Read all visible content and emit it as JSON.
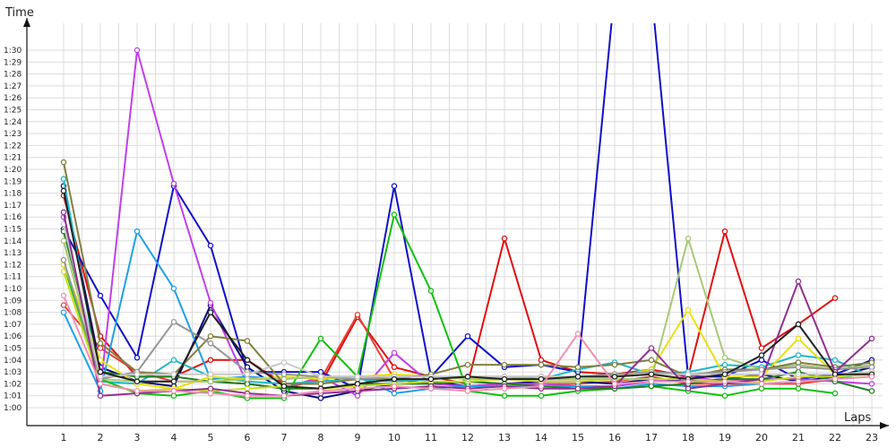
{
  "chart_data": {
    "type": "line",
    "ylabel": "Time",
    "xlabel": "Laps",
    "x": [
      1,
      2,
      3,
      4,
      5,
      6,
      7,
      8,
      9,
      10,
      11,
      12,
      13,
      14,
      15,
      16,
      17,
      18,
      19,
      20,
      21,
      22,
      23
    ],
    "y_tick_labels": [
      "1:00",
      "1:01",
      "1:02",
      "1:03",
      "1:04",
      "1:05",
      "1:06",
      "1:07",
      "1:08",
      "1:09",
      "1:10",
      "1:11",
      "1:12",
      "1:13",
      "1:14",
      "1:15",
      "1:16",
      "1:17",
      "1:18",
      "1:19",
      "1:20",
      "1:21",
      "1:22",
      "1:23",
      "1:24",
      "1:25",
      "1:26",
      "1:27",
      "1:28",
      "1:29",
      "1:30"
    ],
    "ylim_seconds": [
      60,
      90
    ],
    "grid": true,
    "series": [
      {
        "color": "#e01010",
        "values": [
          77.8,
          66.0,
          62.6,
          62.6,
          64.0,
          64.0,
          62.0,
          62.0,
          67.6,
          63.4,
          62.6,
          62.0,
          74.2,
          64.0,
          63.0,
          62.8,
          63.2,
          62.6,
          74.8,
          65.0,
          67.0,
          69.2,
          null
        ]
      },
      {
        "color": "#e8403a",
        "values": [
          68.6,
          65.0,
          63.0,
          62.2,
          62.2,
          62.0,
          61.6,
          62.4,
          67.8,
          62.4,
          62.0,
          62.2,
          62.0,
          62.0,
          62.0,
          62.2,
          62.6,
          62.0,
          62.0,
          62.0,
          62.0,
          62.4,
          null
        ]
      },
      {
        "color": "#1010c8",
        "values": [
          75.0,
          69.4,
          64.2,
          78.6,
          73.6,
          63.0,
          63.0,
          63.0,
          61.6,
          78.6,
          62.6,
          66.0,
          63.4,
          63.6,
          63.0,
          95.0,
          95.0,
          62.6,
          62.6,
          64.0,
          62.4,
          62.8,
          64.0
        ]
      },
      {
        "color": "#0a0a80",
        "values": [
          78.6,
          63.4,
          62.2,
          61.8,
          68.6,
          63.4,
          61.4,
          60.8,
          61.4,
          62.0,
          62.2,
          61.8,
          62.0,
          62.2,
          62.2,
          62.0,
          62.4,
          62.2,
          62.4,
          62.8,
          62.2,
          62.6,
          63.4
        ]
      },
      {
        "color": "#c040e8",
        "values": [
          76.0,
          61.4,
          90.0,
          78.8,
          68.8,
          62.0,
          61.6,
          62.6,
          61.0,
          64.6,
          62.0,
          61.8,
          62.0,
          62.0,
          61.8,
          61.8,
          62.2,
          62.6,
          62.2,
          62.4,
          62.4,
          62.2,
          62.0
        ]
      },
      {
        "color": "#1ea0e8",
        "values": [
          68.0,
          61.4,
          74.8,
          70.0,
          62.4,
          62.6,
          62.4,
          62.6,
          62.6,
          61.2,
          61.6,
          61.8,
          61.8,
          61.8,
          61.8,
          61.6,
          62.0,
          61.8,
          61.8,
          62.0,
          62.2,
          62.4,
          63.0
        ]
      },
      {
        "color": "#20b8c8",
        "values": [
          79.2,
          62.2,
          62.0,
          64.0,
          62.6,
          62.2,
          62.0,
          62.2,
          62.4,
          62.2,
          62.4,
          62.6,
          62.6,
          62.4,
          63.2,
          63.8,
          62.8,
          63.0,
          63.6,
          63.4,
          64.4,
          64.0,
          62.6
        ]
      },
      {
        "color": "#10c010",
        "values": [
          72.0,
          62.4,
          61.2,
          61.0,
          61.4,
          60.8,
          60.8,
          65.8,
          62.6,
          76.2,
          69.8,
          61.4,
          61.0,
          61.0,
          61.4,
          61.6,
          61.8,
          61.4,
          61.0,
          61.6,
          61.6,
          61.2,
          null
        ]
      },
      {
        "color": "#208020",
        "values": [
          74.8,
          63.0,
          62.6,
          62.6,
          62.2,
          62.0,
          61.6,
          61.6,
          62.0,
          62.0,
          62.0,
          62.2,
          62.0,
          61.8,
          61.6,
          61.6,
          61.8,
          62.0,
          62.4,
          62.4,
          63.0,
          62.2,
          61.4
        ]
      },
      {
        "color": "#c8e020",
        "values": [
          71.4,
          62.0,
          61.4,
          61.6,
          61.4,
          61.6,
          61.8,
          61.6,
          61.8,
          62.0,
          62.2,
          62.2,
          62.4,
          62.2,
          62.2,
          62.4,
          62.4,
          62.4,
          62.2,
          62.2,
          62.6,
          62.6,
          62.8
        ]
      },
      {
        "color": "#e8e010",
        "values": [
          72.0,
          64.0,
          62.0,
          61.6,
          62.6,
          62.4,
          62.6,
          62.4,
          62.6,
          62.8,
          62.6,
          62.4,
          62.6,
          62.6,
          62.6,
          62.6,
          63.2,
          68.2,
          62.6,
          62.6,
          65.8,
          62.8,
          63.0
        ]
      },
      {
        "color": "#a8c878",
        "values": [
          74.0,
          62.4,
          62.2,
          62.2,
          62.2,
          62.4,
          62.4,
          62.6,
          62.6,
          62.6,
          62.6,
          62.4,
          62.4,
          62.4,
          62.4,
          62.4,
          62.4,
          74.2,
          64.2,
          63.2,
          63.6,
          63.2,
          63.6
        ]
      },
      {
        "color": "#808040",
        "values": [
          80.6,
          65.4,
          63.0,
          62.8,
          66.0,
          65.6,
          62.0,
          62.0,
          62.4,
          62.4,
          62.8,
          63.6,
          63.6,
          63.6,
          63.4,
          63.6,
          64.0,
          62.6,
          63.2,
          63.2,
          63.8,
          63.4,
          63.8
        ]
      },
      {
        "color": "#969696",
        "values": [
          72.4,
          62.4,
          63.0,
          67.2,
          65.4,
          63.0,
          62.8,
          62.6,
          62.4,
          62.6,
          62.6,
          62.6,
          62.6,
          62.6,
          62.6,
          62.8,
          63.0,
          62.8,
          63.0,
          63.2,
          63.4,
          63.2,
          63.4
        ]
      },
      {
        "color": "#c8c8c8",
        "values": [
          75.4,
          62.6,
          62.8,
          62.8,
          62.8,
          62.8,
          63.8,
          62.6,
          62.6,
          62.6,
          62.6,
          62.6,
          62.6,
          62.6,
          62.6,
          62.6,
          62.8,
          62.8,
          62.8,
          62.8,
          62.8,
          62.8,
          63.0
        ]
      },
      {
        "color": "#903090",
        "values": [
          76.4,
          61.0,
          61.2,
          61.4,
          61.6,
          61.2,
          61.0,
          61.2,
          61.4,
          61.6,
          61.8,
          61.6,
          61.8,
          61.6,
          61.6,
          61.8,
          65.0,
          61.6,
          62.0,
          62.4,
          70.6,
          63.0,
          65.8
        ]
      },
      {
        "color": "#222222",
        "values": [
          78.2,
          63.0,
          62.2,
          62.2,
          68.0,
          64.0,
          61.8,
          61.6,
          62.0,
          62.4,
          62.4,
          62.6,
          62.4,
          62.4,
          62.6,
          62.6,
          62.8,
          62.4,
          62.8,
          64.4,
          67.0,
          62.8,
          62.8
        ]
      },
      {
        "color": "#f090b0",
        "values": [
          69.4,
          62.0,
          61.4,
          61.4,
          61.2,
          61.0,
          61.0,
          61.4,
          61.6,
          61.8,
          61.6,
          61.4,
          61.6,
          61.8,
          66.2,
          62.0,
          62.2,
          62.2,
          62.2,
          62.0,
          62.2,
          62.4,
          62.6
        ]
      }
    ]
  }
}
